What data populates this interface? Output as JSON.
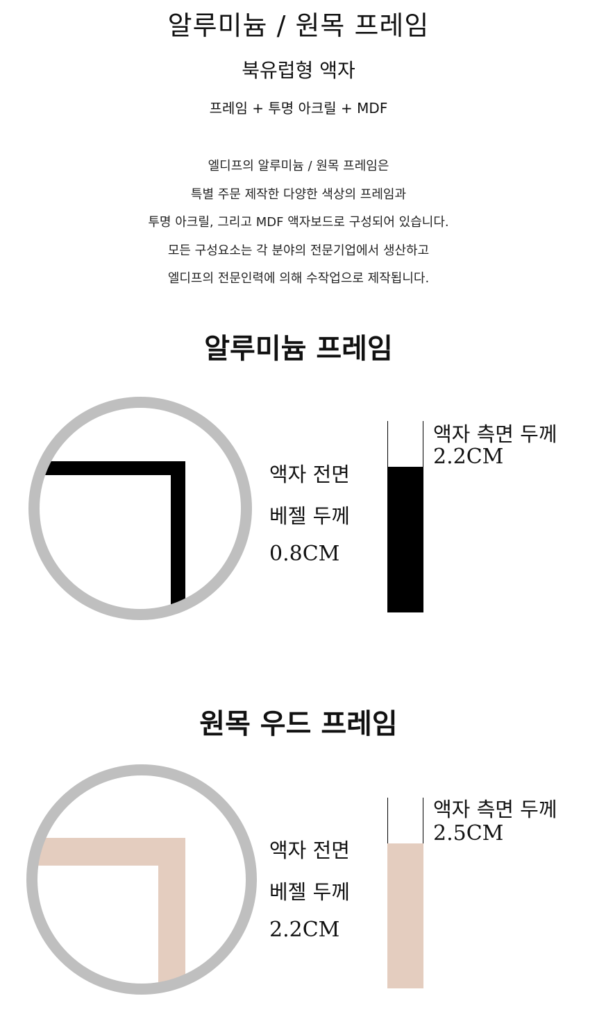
{
  "header": {
    "title": "알루미늄 / 원목 프레임",
    "subtitle": "북유럽형 액자",
    "composition": "프레임 + 투명 아크릴 + MDF"
  },
  "description": [
    "엘디프의 알루미늄 / 원목 프레임은",
    "특별 주문 제작한 다양한 색상의 프레임과",
    "투명 아크릴, 그리고 MDF 액자보드로 구성되어 있습니다.",
    "모든 구성요소는 각 분야의 전문기업에서 생산하고",
    "엘디프의 전문인력에 의해 수작업으로 제작됩니다."
  ],
  "sections": [
    {
      "heading": "알루미늄 프레임",
      "front_label_1": "액자 전면",
      "front_label_2": "베젤 두께",
      "front_value": "0.8CM",
      "side_label": "액자 측면 두께",
      "side_value": "2.2CM",
      "frame_color": "#000000"
    },
    {
      "heading": "원목 우드 프레임",
      "front_label_1": "액자 전면",
      "front_label_2": "베젤 두께",
      "front_value": "2.2CM",
      "side_label": "액자 측면 두께",
      "side_value": "2.5CM",
      "frame_color": "#e4cdbf"
    }
  ],
  "colors": {
    "circle": "#bfbfbf"
  }
}
